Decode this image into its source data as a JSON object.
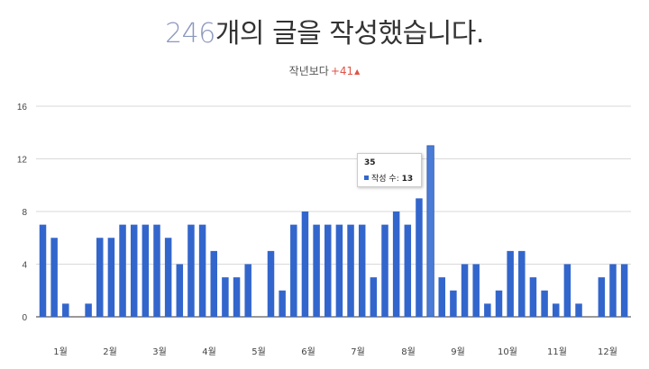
{
  "header": {
    "count": "246",
    "headline_rest": "개의 글을 작성했습니다.",
    "compare_label": "작년보다",
    "compare_delta": "+41",
    "compare_arrow": "▲"
  },
  "tooltip": {
    "title": "35",
    "series_label": "작성 수:",
    "value": "13"
  },
  "chart_data": {
    "type": "bar",
    "ylim": [
      0,
      16
    ],
    "yticks": [
      0,
      4,
      8,
      12,
      16
    ],
    "grid": true,
    "bar_color": "#3366cc",
    "series": [
      {
        "name": "작성 수",
        "values": [
          7,
          6,
          1,
          0,
          1,
          6,
          6,
          7,
          7,
          7,
          7,
          6,
          4,
          7,
          7,
          5,
          3,
          3,
          4,
          0,
          5,
          2,
          7,
          8,
          7,
          7,
          7,
          7,
          7,
          3,
          7,
          8,
          7,
          9,
          13,
          3,
          2,
          4,
          4,
          1,
          2,
          5,
          5,
          3,
          2,
          1,
          4,
          1,
          0,
          3,
          4,
          4
        ]
      }
    ],
    "month_labels": [
      "1월",
      "2월",
      "3월",
      "4월",
      "5월",
      "6월",
      "7월",
      "8월",
      "9월",
      "10월",
      "11월",
      "12월"
    ]
  }
}
